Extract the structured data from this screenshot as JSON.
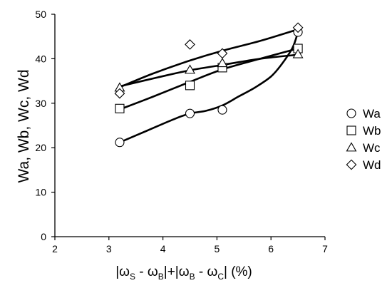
{
  "chart_data": {
    "type": "scatter",
    "title": "",
    "xlabel": "|ωS - ωB|+|ωB - ωC| (%)",
    "xlabel_parts": {
      "open": "|ω",
      "sub1": "S",
      "mid1": " - ω",
      "sub2": "B",
      "mid2": "|+|ω",
      "sub3": "B",
      "mid3": " - ω",
      "sub4": "C",
      "close": "| (%)"
    },
    "ylabel": "Wa, Wb, Wc, Wd",
    "xlim": [
      2,
      7
    ],
    "ylim": [
      0,
      50
    ],
    "xticks": [
      2,
      3,
      4,
      5,
      6,
      7
    ],
    "yticks": [
      0,
      10,
      20,
      30,
      40,
      50
    ],
    "grid": false,
    "legend_position": "right",
    "series": [
      {
        "name": "Wa",
        "marker": "circle",
        "x": [
          3.2,
          4.5,
          5.1,
          6.5
        ],
        "y": [
          21.2,
          27.7,
          28.5,
          46.0
        ],
        "curve": [
          [
            3.2,
            21.2
          ],
          [
            3.7,
            23.8
          ],
          [
            4.2,
            26.4
          ],
          [
            4.5,
            27.7
          ],
          [
            4.8,
            28.3
          ],
          [
            5.1,
            29.5
          ],
          [
            5.4,
            31.5
          ],
          [
            5.7,
            33.5
          ],
          [
            6.0,
            36.0
          ],
          [
            6.2,
            38.8
          ],
          [
            6.4,
            42.5
          ],
          [
            6.5,
            46.0
          ]
        ]
      },
      {
        "name": "Wb",
        "marker": "square",
        "x": [
          3.2,
          4.5,
          5.1,
          6.5
        ],
        "y": [
          28.8,
          34.0,
          38.0,
          42.3
        ],
        "curve": [
          [
            3.2,
            28.6
          ],
          [
            3.8,
            31.4
          ],
          [
            4.5,
            34.8
          ],
          [
            5.1,
            37.6
          ],
          [
            5.8,
            40.0
          ],
          [
            6.5,
            42.3
          ]
        ]
      },
      {
        "name": "Wc",
        "marker": "triangle",
        "x": [
          3.2,
          4.5,
          5.1,
          6.5
        ],
        "y": [
          33.5,
          37.5,
          39.0,
          41.0
        ],
        "curve": [
          [
            3.2,
            33.8
          ],
          [
            3.9,
            35.8
          ],
          [
            4.5,
            37.4
          ],
          [
            5.1,
            38.6
          ],
          [
            5.8,
            40.0
          ],
          [
            6.5,
            40.9
          ]
        ]
      },
      {
        "name": "Wd",
        "marker": "diamond",
        "x": [
          3.2,
          4.5,
          5.1,
          6.5
        ],
        "y": [
          32.2,
          43.2,
          41.2,
          47.0
        ],
        "curve": [
          [
            3.2,
            33.6
          ],
          [
            3.8,
            36.6
          ],
          [
            4.5,
            39.6
          ],
          [
            5.1,
            41.8
          ],
          [
            5.8,
            44.0
          ],
          [
            6.5,
            46.6
          ]
        ]
      }
    ]
  }
}
